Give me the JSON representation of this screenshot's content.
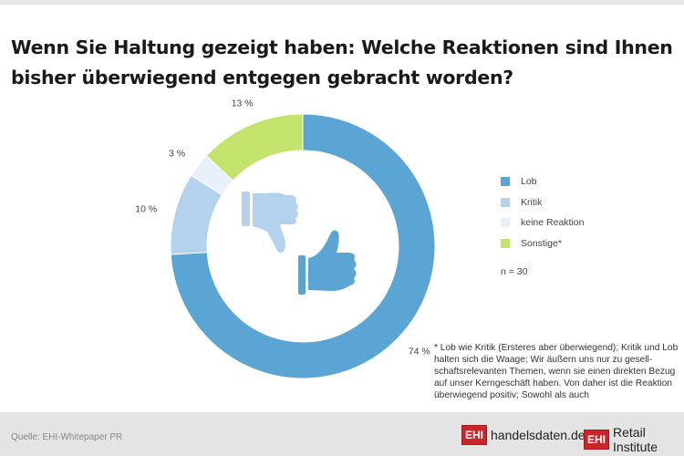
{
  "title": "Wenn Sie Haltung gezeigt haben: Welche Reaktionen sind Ihnen bisher überwiegend entgegen gebracht worden?",
  "chart_data": {
    "type": "pie",
    "variant": "donut",
    "categories": [
      "Lob",
      "Kritik",
      "keine Reaktion",
      "Sonstige*"
    ],
    "values": [
      74,
      10,
      3,
      13
    ],
    "data_labels": [
      "74 %",
      "10 %",
      "3 %",
      "13 %"
    ],
    "colors": [
      "#5aa5d3",
      "#b4d2ee",
      "#e8f0fa",
      "#c4e36c"
    ],
    "legend_position": "right",
    "sample_note": "n = 30",
    "center_icons": [
      "thumbs-down-icon",
      "thumbs-up-icon"
    ]
  },
  "footnote": "* Lob wie Kritik (Ersteres aber überwiegend); Kritik und Lob halten sich die Waage; Wir äußern uns nur zu gesell-schaftsrelevanten Themen, wenn sie einen direkten Bezug auf unser Kerngeschäft haben. Von daher ist die Reaktion überwiegend positiv; Sowohl als auch",
  "footer": {
    "source": "Quelle: EHI-Whitepaper PR",
    "logo1_mark": "EHI",
    "logo1_text": "handelsdaten.de",
    "logo2_mark": "EHI",
    "logo2_text": "Retail Institute"
  }
}
